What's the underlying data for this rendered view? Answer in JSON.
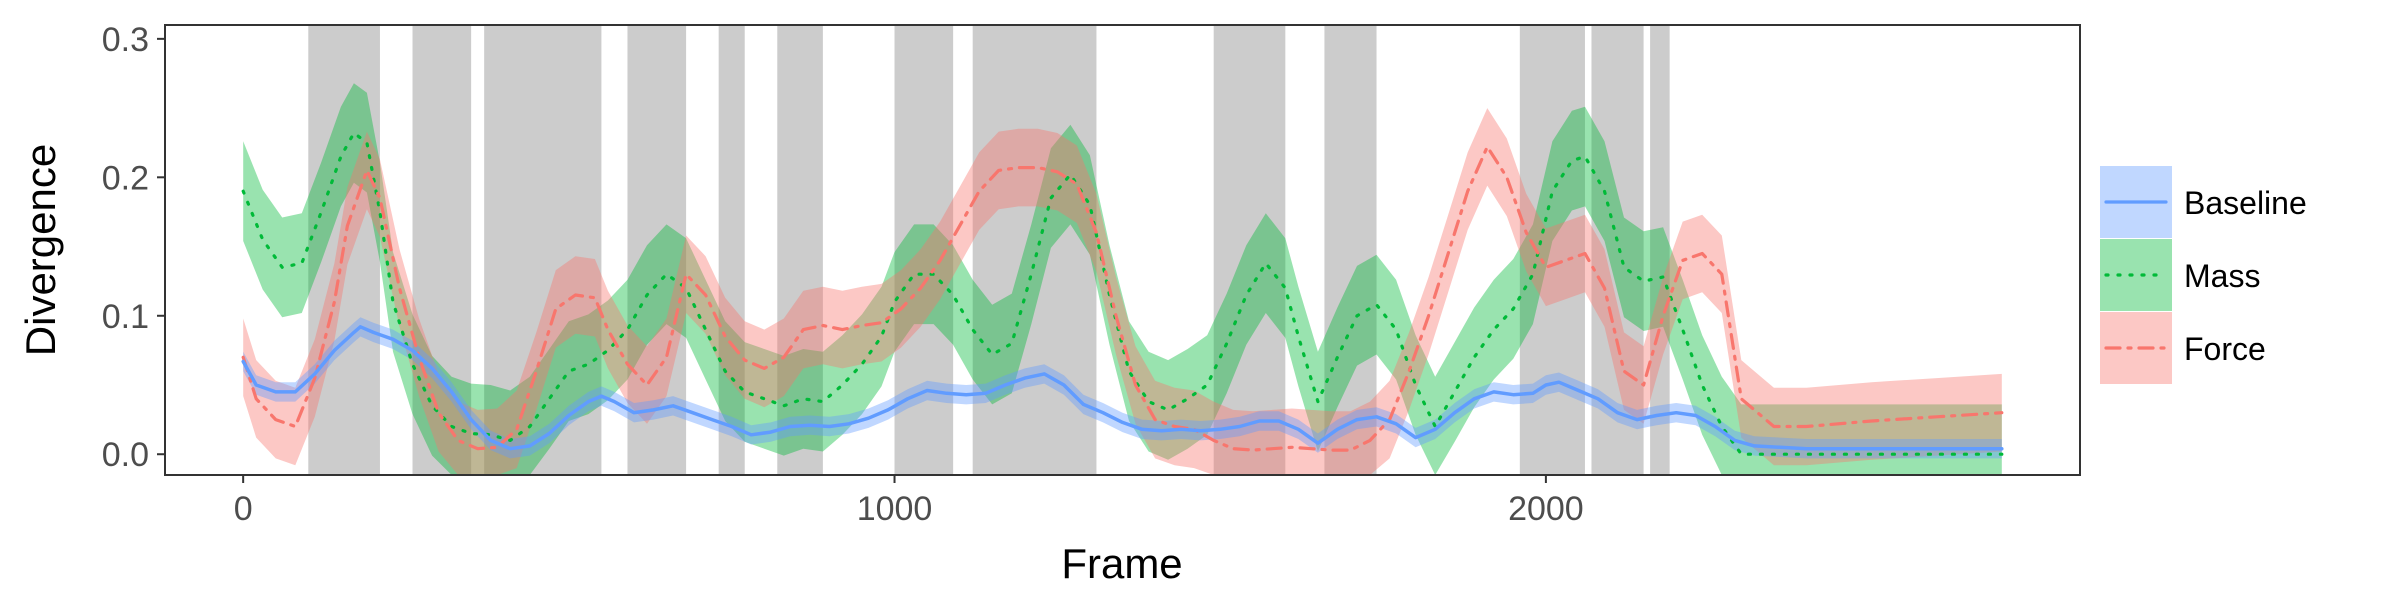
{
  "chart_data": {
    "type": "line",
    "xlabel": "Frame",
    "ylabel": "Divergence",
    "xlim": [
      -120,
      2820
    ],
    "ylim": [
      -0.015,
      0.31
    ],
    "x_ticks": [
      0,
      1000,
      2000
    ],
    "x_tick_labels": [
      "0",
      "1000",
      "2000"
    ],
    "y_ticks": [
      0.0,
      0.1,
      0.2,
      0.3
    ],
    "y_tick_labels": [
      "0.0",
      "0.1",
      "0.2",
      "0.3"
    ],
    "grid": false,
    "legend_position": "right",
    "shaded_regions": [
      [
        100,
        210
      ],
      [
        260,
        350
      ],
      [
        370,
        550
      ],
      [
        590,
        680
      ],
      [
        730,
        770
      ],
      [
        820,
        890
      ],
      [
        1000,
        1090
      ],
      [
        1120,
        1310
      ],
      [
        1490,
        1600
      ],
      [
        1660,
        1740
      ],
      [
        1960,
        2060
      ],
      [
        2070,
        2150
      ],
      [
        2160,
        2190
      ]
    ],
    "series": [
      {
        "name": "Baseline",
        "color": "#619CFF",
        "line_style": "solid",
        "x": [
          0,
          20,
          50,
          80,
          110,
          140,
          170,
          180,
          200,
          230,
          260,
          290,
          320,
          350,
          380,
          410,
          440,
          470,
          500,
          530,
          550,
          570,
          600,
          630,
          660,
          690,
          720,
          750,
          780,
          810,
          840,
          870,
          900,
          930,
          960,
          990,
          1020,
          1050,
          1080,
          1110,
          1140,
          1170,
          1200,
          1230,
          1260,
          1290,
          1320,
          1350,
          1380,
          1410,
          1440,
          1470,
          1500,
          1530,
          1560,
          1590,
          1620,
          1650,
          1680,
          1710,
          1740,
          1770,
          1800,
          1830,
          1860,
          1890,
          1920,
          1950,
          1980,
          2000,
          2020,
          2050,
          2080,
          2110,
          2140,
          2170,
          2200,
          2230,
          2260,
          2290,
          2320,
          2400,
          2500,
          2600,
          2700
        ],
        "y": [
          0.067,
          0.05,
          0.045,
          0.045,
          0.058,
          0.075,
          0.088,
          0.092,
          0.088,
          0.083,
          0.075,
          0.062,
          0.045,
          0.025,
          0.01,
          0.004,
          0.006,
          0.015,
          0.028,
          0.038,
          0.042,
          0.038,
          0.03,
          0.032,
          0.035,
          0.03,
          0.025,
          0.02,
          0.014,
          0.016,
          0.02,
          0.021,
          0.02,
          0.022,
          0.026,
          0.032,
          0.04,
          0.046,
          0.044,
          0.043,
          0.044,
          0.05,
          0.055,
          0.058,
          0.05,
          0.036,
          0.03,
          0.023,
          0.018,
          0.017,
          0.018,
          0.017,
          0.018,
          0.02,
          0.024,
          0.024,
          0.018,
          0.008,
          0.018,
          0.025,
          0.027,
          0.022,
          0.012,
          0.018,
          0.03,
          0.04,
          0.045,
          0.043,
          0.044,
          0.05,
          0.052,
          0.046,
          0.04,
          0.03,
          0.025,
          0.028,
          0.03,
          0.028,
          0.02,
          0.01,
          0.006,
          0.004,
          0.004,
          0.004,
          0.004
        ],
        "band": 0.007
      },
      {
        "name": "Mass",
        "color": "#00BA38",
        "line_style": "dotted",
        "x": [
          0,
          30,
          60,
          90,
          120,
          150,
          170,
          190,
          210,
          230,
          260,
          290,
          320,
          350,
          380,
          410,
          440,
          470,
          500,
          530,
          560,
          590,
          620,
          650,
          680,
          710,
          740,
          770,
          800,
          830,
          860,
          890,
          920,
          950,
          980,
          1000,
          1030,
          1060,
          1090,
          1120,
          1150,
          1180,
          1210,
          1240,
          1270,
          1300,
          1330,
          1360,
          1390,
          1420,
          1450,
          1480,
          1510,
          1540,
          1570,
          1600,
          1620,
          1650,
          1680,
          1710,
          1740,
          1770,
          1800,
          1830,
          1860,
          1890,
          1920,
          1950,
          1980,
          2010,
          2040,
          2060,
          2090,
          2120,
          2150,
          2180,
          2210,
          2240,
          2270,
          2300,
          2400,
          2500,
          2600,
          2700
        ],
        "y": [
          0.19,
          0.155,
          0.135,
          0.138,
          0.175,
          0.215,
          0.232,
          0.225,
          0.175,
          0.11,
          0.065,
          0.035,
          0.02,
          0.015,
          0.014,
          0.01,
          0.02,
          0.04,
          0.06,
          0.065,
          0.075,
          0.09,
          0.115,
          0.13,
          0.12,
          0.09,
          0.06,
          0.045,
          0.04,
          0.035,
          0.04,
          0.038,
          0.05,
          0.065,
          0.085,
          0.11,
          0.13,
          0.13,
          0.115,
          0.09,
          0.072,
          0.08,
          0.13,
          0.185,
          0.202,
          0.18,
          0.115,
          0.06,
          0.038,
          0.032,
          0.04,
          0.05,
          0.08,
          0.115,
          0.138,
          0.12,
          0.085,
          0.038,
          0.07,
          0.1,
          0.108,
          0.09,
          0.05,
          0.02,
          0.045,
          0.07,
          0.09,
          0.105,
          0.13,
          0.19,
          0.212,
          0.215,
          0.19,
          0.135,
          0.125,
          0.128,
          0.09,
          0.05,
          0.02,
          0.0,
          0.0,
          0.0,
          0.0,
          0.0
        ],
        "band": 0.036
      },
      {
        "name": "Force",
        "color": "#F8766D",
        "line_style": "dashdot",
        "x": [
          0,
          20,
          50,
          80,
          110,
          140,
          160,
          190,
          210,
          240,
          270,
          300,
          330,
          360,
          390,
          420,
          450,
          480,
          510,
          540,
          560,
          590,
          620,
          650,
          680,
          710,
          740,
          770,
          800,
          830,
          860,
          890,
          920,
          950,
          980,
          1010,
          1040,
          1070,
          1100,
          1130,
          1160,
          1190,
          1220,
          1250,
          1280,
          1310,
          1340,
          1370,
          1400,
          1430,
          1460,
          1490,
          1520,
          1550,
          1580,
          1610,
          1640,
          1670,
          1700,
          1730,
          1760,
          1790,
          1820,
          1850,
          1880,
          1910,
          1940,
          1970,
          2000,
          2030,
          2060,
          2090,
          2120,
          2150,
          2180,
          2210,
          2240,
          2270,
          2300,
          2350,
          2400,
          2500,
          2600,
          2700
        ],
        "y": [
          0.07,
          0.04,
          0.025,
          0.02,
          0.055,
          0.11,
          0.165,
          0.205,
          0.185,
          0.12,
          0.07,
          0.03,
          0.01,
          0.004,
          0.005,
          0.018,
          0.06,
          0.105,
          0.115,
          0.113,
          0.09,
          0.065,
          0.05,
          0.07,
          0.13,
          0.115,
          0.085,
          0.068,
          0.062,
          0.07,
          0.09,
          0.093,
          0.09,
          0.093,
          0.095,
          0.105,
          0.12,
          0.14,
          0.165,
          0.19,
          0.205,
          0.207,
          0.207,
          0.204,
          0.195,
          0.16,
          0.1,
          0.05,
          0.025,
          0.02,
          0.018,
          0.01,
          0.004,
          0.003,
          0.004,
          0.005,
          0.004,
          0.003,
          0.003,
          0.01,
          0.025,
          0.06,
          0.1,
          0.145,
          0.19,
          0.222,
          0.2,
          0.16,
          0.135,
          0.14,
          0.145,
          0.12,
          0.06,
          0.05,
          0.1,
          0.14,
          0.145,
          0.13,
          0.04,
          0.02,
          0.02,
          0.024,
          0.027,
          0.03
        ],
        "band": 0.028
      }
    ]
  }
}
